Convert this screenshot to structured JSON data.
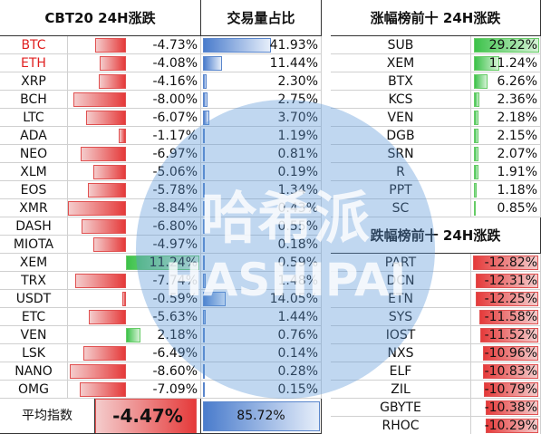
{
  "left": {
    "headers": [
      "CBT20 24H涨跌",
      "交易量占比"
    ],
    "rows": [
      {
        "name": "BTC",
        "color": "#e02020",
        "change": {
          "value": -4.73,
          "label": "-4.73%"
        },
        "volume": {
          "value": 41.93,
          "label": "41.93%"
        }
      },
      {
        "name": "ETH",
        "color": "#e02020",
        "change": {
          "value": -4.08,
          "label": "-4.08%"
        },
        "volume": {
          "value": 11.44,
          "label": "11.44%"
        }
      },
      {
        "name": "XRP",
        "change": {
          "value": -4.16,
          "label": "-4.16%"
        },
        "volume": {
          "value": 2.3,
          "label": "2.30%"
        }
      },
      {
        "name": "BCH",
        "change": {
          "value": -8.0,
          "label": "-8.00%"
        },
        "volume": {
          "value": 2.75,
          "label": "2.75%"
        }
      },
      {
        "name": "LTC",
        "change": {
          "value": -6.07,
          "label": "-6.07%"
        },
        "volume": {
          "value": 3.7,
          "label": "3.70%"
        }
      },
      {
        "name": "ADA",
        "change": {
          "value": -1.17,
          "label": "-1.17%"
        },
        "volume": {
          "value": 1.19,
          "label": "1.19%"
        }
      },
      {
        "name": "NEO",
        "change": {
          "value": -6.97,
          "label": "-6.97%"
        },
        "volume": {
          "value": 0.81,
          "label": "0.81%"
        }
      },
      {
        "name": "XLM",
        "change": {
          "value": -5.06,
          "label": "-5.06%"
        },
        "volume": {
          "value": 0.19,
          "label": "0.19%"
        }
      },
      {
        "name": "EOS",
        "change": {
          "value": -5.78,
          "label": "-5.78%"
        },
        "volume": {
          "value": 1.34,
          "label": "1.34%"
        }
      },
      {
        "name": "XMR",
        "change": {
          "value": -8.84,
          "label": "-8.84%"
        },
        "volume": {
          "value": 0.43,
          "label": "0.43%"
        }
      },
      {
        "name": "DASH",
        "change": {
          "value": -6.8,
          "label": "-6.80%"
        },
        "volume": {
          "value": 0.55,
          "label": "0.55%"
        }
      },
      {
        "name": "MIOTA",
        "change": {
          "value": -4.97,
          "label": "-4.97%"
        },
        "volume": {
          "value": 0.18,
          "label": "0.18%"
        }
      },
      {
        "name": "XEM",
        "change": {
          "value": 11.24,
          "label": "11.24%"
        },
        "volume": {
          "value": 0.59,
          "label": "0.59%"
        }
      },
      {
        "name": "TRX",
        "change": {
          "value": -7.74,
          "label": "-7.74%"
        },
        "volume": {
          "value": 1.48,
          "label": "1.48%"
        }
      },
      {
        "name": "USDT",
        "change": {
          "value": -0.59,
          "label": "-0.59%"
        },
        "volume": {
          "value": 14.05,
          "label": "14.05%"
        }
      },
      {
        "name": "ETC",
        "change": {
          "value": -5.63,
          "label": "-5.63%"
        },
        "volume": {
          "value": 1.44,
          "label": "1.44%"
        }
      },
      {
        "name": "VEN",
        "change": {
          "value": 2.18,
          "label": "2.18%"
        },
        "volume": {
          "value": 0.76,
          "label": "0.76%"
        }
      },
      {
        "name": "LSK",
        "change": {
          "value": -6.49,
          "label": "-6.49%"
        },
        "volume": {
          "value": 0.14,
          "label": "0.14%"
        }
      },
      {
        "name": "NANO",
        "change": {
          "value": -8.6,
          "label": "-8.60%"
        },
        "volume": {
          "value": 0.28,
          "label": "0.28%"
        }
      },
      {
        "name": "OMG",
        "change": {
          "value": -7.09,
          "label": "-7.09%"
        },
        "volume": {
          "value": 0.15,
          "label": "0.15%"
        }
      }
    ],
    "footer": {
      "name": "平均指数",
      "change": {
        "value": -4.47,
        "label": "-4.47%"
      },
      "volume": {
        "value": 85.72,
        "label": "85.72%"
      }
    }
  },
  "gainers": {
    "title": "涨幅榜前十 24H涨跌",
    "rows": [
      {
        "name": "SUB",
        "change": {
          "value": 29.22,
          "label": "29.22%"
        }
      },
      {
        "name": "XEM",
        "change": {
          "value": 11.24,
          "label": "11.24%"
        }
      },
      {
        "name": "BTX",
        "change": {
          "value": 6.26,
          "label": "6.26%"
        }
      },
      {
        "name": "KCS",
        "change": {
          "value": 2.36,
          "label": "2.36%"
        }
      },
      {
        "name": "VEN",
        "change": {
          "value": 2.18,
          "label": "2.18%"
        }
      },
      {
        "name": "DGB",
        "change": {
          "value": 2.15,
          "label": "2.15%"
        }
      },
      {
        "name": "SRN",
        "change": {
          "value": 2.07,
          "label": "2.07%"
        }
      },
      {
        "name": "R",
        "change": {
          "value": 1.91,
          "label": "1.91%"
        }
      },
      {
        "name": "PPT",
        "change": {
          "value": 1.18,
          "label": "1.18%"
        }
      },
      {
        "name": "SC",
        "change": {
          "value": 0.85,
          "label": "0.85%"
        }
      }
    ]
  },
  "losers": {
    "title": "跌幅榜前十 24H涨跌",
    "rows": [
      {
        "name": "PART",
        "change": {
          "value": -12.82,
          "label": "-12.82%"
        }
      },
      {
        "name": "DCN",
        "change": {
          "value": -12.31,
          "label": "-12.31%"
        }
      },
      {
        "name": "ETN",
        "change": {
          "value": -12.25,
          "label": "-12.25%"
        }
      },
      {
        "name": "SYS",
        "change": {
          "value": -11.58,
          "label": "-11.58%"
        }
      },
      {
        "name": "IOST",
        "change": {
          "value": -11.52,
          "label": "-11.52%"
        }
      },
      {
        "name": "NXS",
        "change": {
          "value": -10.96,
          "label": "-10.96%"
        }
      },
      {
        "name": "ELF",
        "change": {
          "value": -10.83,
          "label": "-10.83%"
        }
      },
      {
        "name": "ZIL",
        "change": {
          "value": -10.79,
          "label": "-10.79%"
        }
      },
      {
        "name": "GBYTE",
        "change": {
          "value": -10.38,
          "label": "-10.38%"
        }
      },
      {
        "name": "RHOC",
        "change": {
          "value": -10.29,
          "label": "-10.29%"
        }
      }
    ]
  },
  "watermark": [
    "哈希派",
    "HASHIPAI"
  ]
}
